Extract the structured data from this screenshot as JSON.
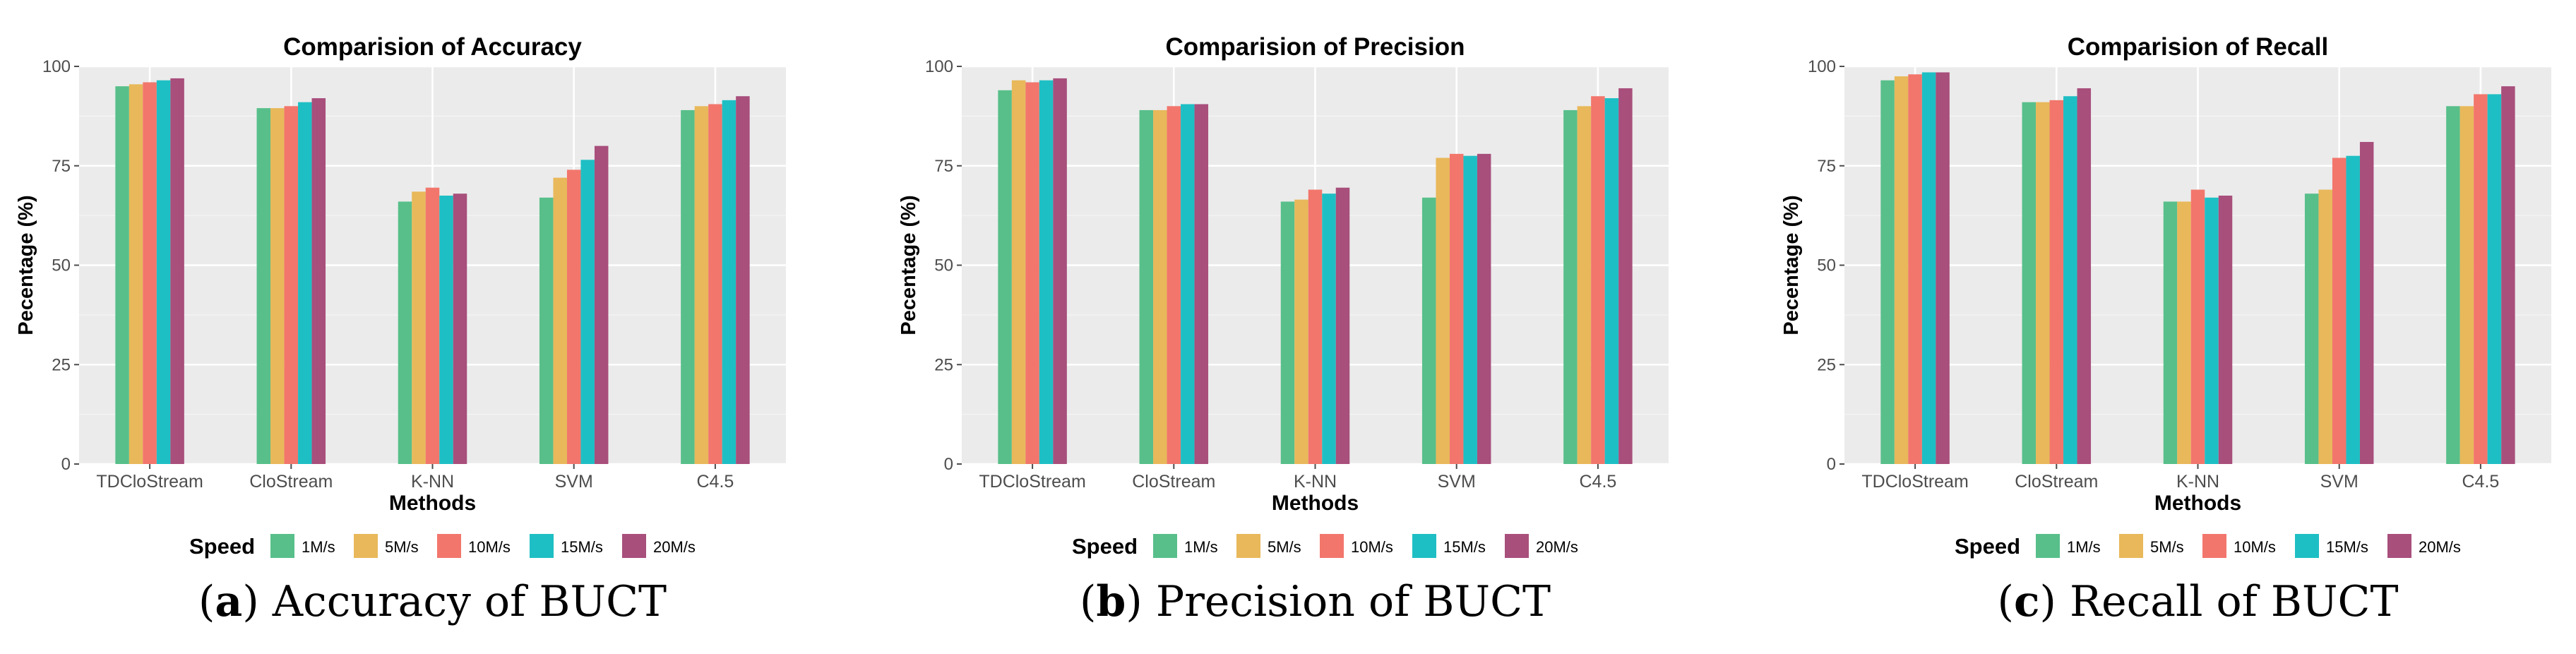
{
  "legend": {
    "title": "Speed",
    "items": [
      {
        "label": "1M/s",
        "color": "#58BF8A"
      },
      {
        "label": "5M/s",
        "color": "#E8B85A"
      },
      {
        "label": "10M/s",
        "color": "#F2766C"
      },
      {
        "label": "15M/s",
        "color": "#1EBFC4"
      },
      {
        "label": "20M/s",
        "color": "#A84F7C"
      }
    ]
  },
  "chart_data": [
    {
      "type": "bar",
      "title": "Comparision of Accuracy",
      "xlabel": "Methods",
      "ylabel": "Pecentage (%)",
      "ylim": [
        0,
        100
      ],
      "yticks": [
        0,
        25,
        50,
        75,
        100
      ],
      "categories": [
        "TDCloStream",
        "CloStream",
        "K-NN",
        "SVM",
        "C4.5"
      ],
      "series": [
        {
          "name": "1M/s",
          "values": [
            95,
            89.5,
            66,
            67,
            89
          ]
        },
        {
          "name": "5M/s",
          "values": [
            95.5,
            89.5,
            68.5,
            72,
            90
          ]
        },
        {
          "name": "10M/s",
          "values": [
            96,
            90,
            69.5,
            74,
            90.5
          ]
        },
        {
          "name": "15M/s",
          "values": [
            96.5,
            91,
            67.5,
            76.5,
            91.5
          ]
        },
        {
          "name": "20M/s",
          "values": [
            97,
            92,
            68,
            80,
            92.5
          ]
        }
      ],
      "caption_letter": "a",
      "caption_text": "Accuracy of BUCT"
    },
    {
      "type": "bar",
      "title": "Comparision of Precision",
      "xlabel": "Methods",
      "ylabel": "Pecentage (%)",
      "ylim": [
        0,
        100
      ],
      "yticks": [
        0,
        25,
        50,
        75,
        100
      ],
      "categories": [
        "TDCloStream",
        "CloStream",
        "K-NN",
        "SVM",
        "C4.5"
      ],
      "series": [
        {
          "name": "1M/s",
          "values": [
            94,
            89,
            66,
            67,
            89
          ]
        },
        {
          "name": "5M/s",
          "values": [
            96.5,
            89,
            66.5,
            77,
            90
          ]
        },
        {
          "name": "10M/s",
          "values": [
            96,
            90,
            69,
            78,
            92.5
          ]
        },
        {
          "name": "15M/s",
          "values": [
            96.5,
            90.5,
            68,
            77.5,
            92
          ]
        },
        {
          "name": "20M/s",
          "values": [
            97,
            90.5,
            69.5,
            78,
            94.5
          ]
        }
      ],
      "caption_letter": "b",
      "caption_text": "Precision of BUCT"
    },
    {
      "type": "bar",
      "title": "Comparision of Recall",
      "xlabel": "Methods",
      "ylabel": "Pecentage (%)",
      "ylim": [
        0,
        100
      ],
      "yticks": [
        0,
        25,
        50,
        75,
        100
      ],
      "categories": [
        "TDCloStream",
        "CloStream",
        "K-NN",
        "SVM",
        "C4.5"
      ],
      "series": [
        {
          "name": "1M/s",
          "values": [
            96.5,
            91,
            66,
            68,
            90
          ]
        },
        {
          "name": "5M/s",
          "values": [
            97.5,
            91,
            66,
            69,
            90
          ]
        },
        {
          "name": "10M/s",
          "values": [
            98,
            91.5,
            69,
            77,
            93
          ]
        },
        {
          "name": "15M/s",
          "values": [
            98.5,
            92.5,
            67,
            77.5,
            93
          ]
        },
        {
          "name": "20M/s",
          "values": [
            98.5,
            94.5,
            67.5,
            81,
            95
          ]
        }
      ],
      "caption_letter": "c",
      "caption_text": "Recall of BUCT"
    }
  ]
}
